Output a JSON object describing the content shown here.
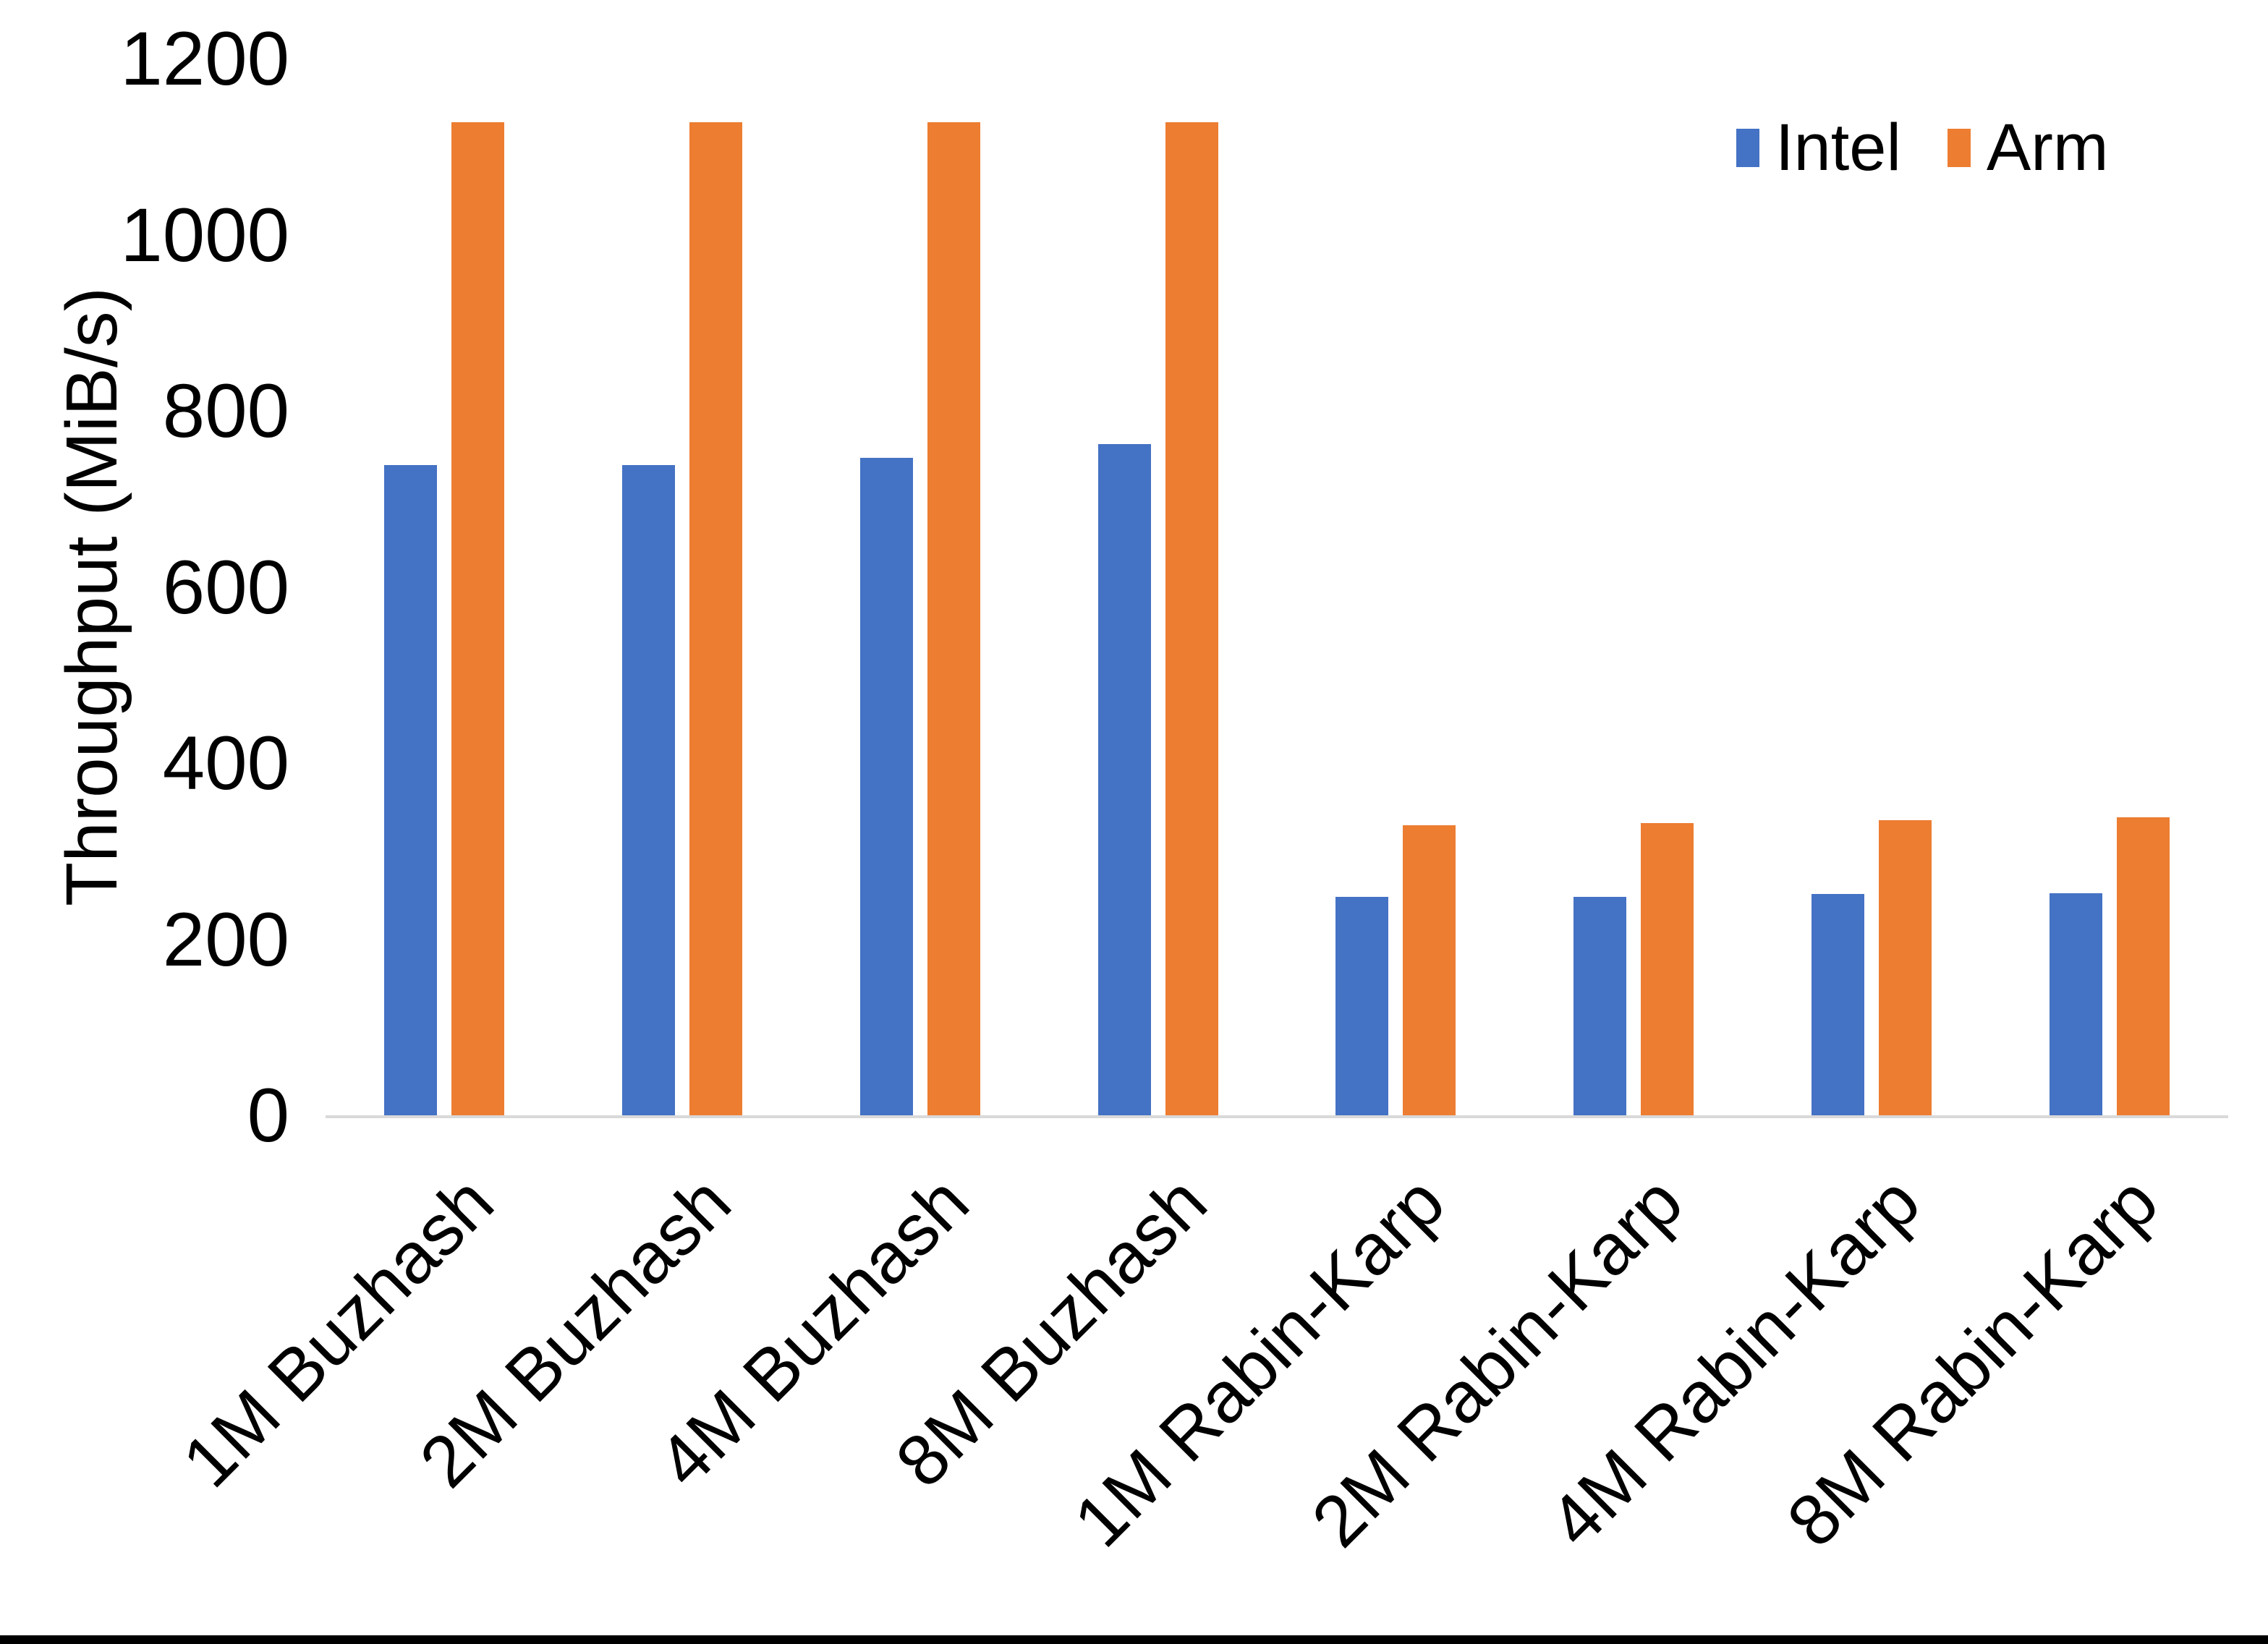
{
  "chart_data": {
    "type": "bar",
    "title": "",
    "xlabel": "",
    "ylabel": "Throughput (MiB/s)",
    "ylim": [
      0,
      1200
    ],
    "yticks": [
      0,
      200,
      400,
      600,
      800,
      1000,
      1200
    ],
    "grid": false,
    "legend_position": "top-right",
    "categories": [
      "1M Buzhash",
      "2M Buzhash",
      "4M Buzhash",
      "8M Buzhash",
      "1M Rabin-Karp",
      "2M Rabin-Karp",
      "4M Rabin-Karp",
      "8M Rabin-Karp"
    ],
    "series": [
      {
        "name": "Intel",
        "color": "#4472C4",
        "values": [
          738,
          738,
          747,
          762,
          248,
          248,
          251,
          252
        ]
      },
      {
        "name": "Arm",
        "color": "#ED7D31",
        "values": [
          1128,
          1128,
          1128,
          1128,
          329,
          332,
          335,
          338
        ]
      }
    ]
  },
  "legend": {
    "items": [
      {
        "label": "Intel",
        "color": "#4472C4"
      },
      {
        "label": "Arm",
        "color": "#ED7D31"
      }
    ]
  },
  "colors": {
    "background": "#FFFFFF",
    "axis_line": "#D9D9D9",
    "text": "#000000",
    "bottom_border": "#000000"
  }
}
